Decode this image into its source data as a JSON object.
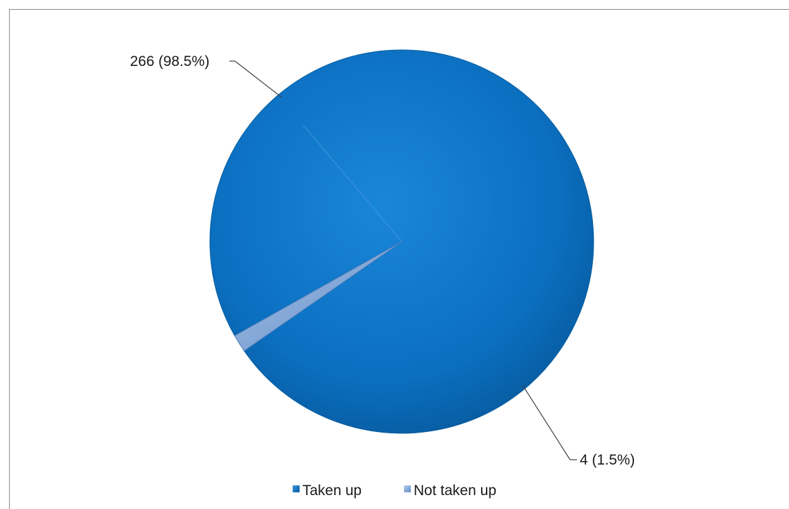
{
  "chart_data": {
    "type": "pie",
    "title": "",
    "categories": [
      "Taken up",
      "Not taken up"
    ],
    "values": [
      266,
      4
    ],
    "percentages": [
      98.5,
      1.5
    ],
    "data_labels": [
      "266 (98.5%)",
      "4 (1.5%)"
    ],
    "colors": [
      "#0a6fc2",
      "#7aa2d6"
    ],
    "legend": {
      "position": "bottom",
      "entries": [
        "Taken up",
        "Not taken up"
      ]
    }
  }
}
